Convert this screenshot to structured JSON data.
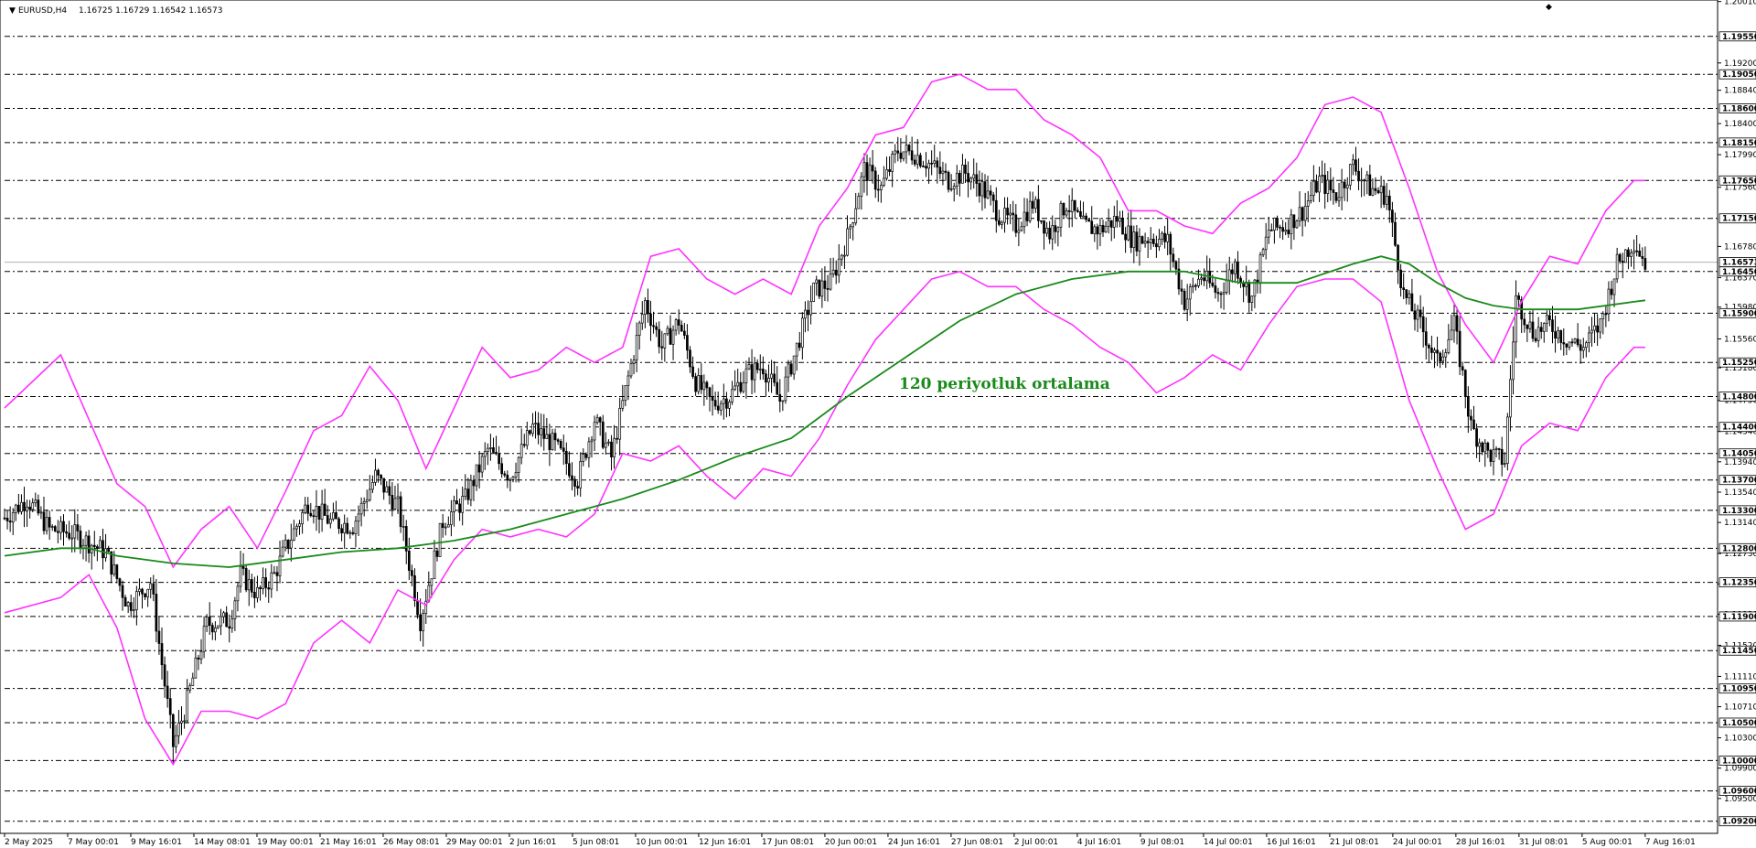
{
  "header": {
    "symbol": "EURUSD,H4",
    "ohlc": "1.16725 1.16729 1.16542 1.16573"
  },
  "annotation": "120 periyotluk ortalama",
  "colors": {
    "candle": "#000000",
    "bands": "#ff33ff",
    "ma": "#1a8a1a",
    "levels": "#000000",
    "bid_line": "#b0b0b0"
  },
  "chart_data": {
    "type": "candlestick",
    "symbol": "EURUSD",
    "timeframe": "H4",
    "ylim": [
      1.0904,
      1.2003
    ],
    "price_axis_ticks": [
      "1.20010",
      "1.19200",
      "1.18840",
      "1.18400",
      "1.17990",
      "1.17560",
      "1.16780",
      "1.16370",
      "1.15980",
      "1.15560",
      "1.15180",
      "1.14750",
      "1.14340",
      "1.13940",
      "1.13540",
      "1.13140",
      "1.12730",
      "1.12330",
      "1.11930",
      "1.11520",
      "1.11110",
      "1.10710",
      "1.10300",
      "1.09900",
      "1.09500"
    ],
    "levels": [
      "1.19550",
      "1.19050",
      "1.18600",
      "1.18150",
      "1.17650",
      "1.17150",
      "1.16450",
      "1.15900",
      "1.15250",
      "1.14800",
      "1.14400",
      "1.14050",
      "1.13700",
      "1.13300",
      "1.12800",
      "1.12350",
      "1.11900",
      "1.11450",
      "1.10950",
      "1.10500",
      "1.10000",
      "1.09600",
      "1.09200"
    ],
    "current_price": "1.16573",
    "x_labels": [
      "2 May 2025",
      "7 May 00:01",
      "9 May 16:01",
      "14 May 08:01",
      "19 May 00:01",
      "21 May 16:01",
      "26 May 08:01",
      "29 May 00:01",
      "2 Jun 16:01",
      "5 Jun 08:01",
      "10 Jun 00:01",
      "12 Jun 16:01",
      "17 Jun 08:01",
      "20 Jun 00:01",
      "24 Jun 16:01",
      "27 Jun 08:01",
      "2 Jul 00:01",
      "4 Jul 16:01",
      "9 Jul 08:01",
      "14 Jul 00:01",
      "16 Jul 16:01",
      "21 Jul 08:01",
      "24 Jul 00:01",
      "28 Jul 16:01",
      "31 Jul 08:01",
      "5 Aug 00:01",
      "7 Aug 16:01"
    ],
    "close_path": [
      [
        0,
        1.132
      ],
      [
        8,
        1.1345
      ],
      [
        16,
        1.1305
      ],
      [
        24,
        1.13
      ],
      [
        36,
        1.1275
      ],
      [
        44,
        1.1205
      ],
      [
        52,
        1.1235
      ],
      [
        60,
        1.102
      ],
      [
        64,
        1.1065
      ],
      [
        72,
        1.118
      ],
      [
        80,
        1.1185
      ],
      [
        84,
        1.1245
      ],
      [
        90,
        1.122
      ],
      [
        96,
        1.1245
      ],
      [
        100,
        1.128
      ],
      [
        108,
        1.134
      ],
      [
        116,
        1.1315
      ],
      [
        124,
        1.131
      ],
      [
        132,
        1.1375
      ],
      [
        140,
        1.1335
      ],
      [
        148,
        1.1185
      ],
      [
        156,
        1.1315
      ],
      [
        164,
        1.1345
      ],
      [
        172,
        1.141
      ],
      [
        180,
        1.1375
      ],
      [
        188,
        1.144
      ],
      [
        196,
        1.1415
      ],
      [
        204,
        1.137
      ],
      [
        210,
        1.145
      ],
      [
        216,
        1.14
      ],
      [
        222,
        1.1505
      ],
      [
        228,
        1.1605
      ],
      [
        234,
        1.1545
      ],
      [
        240,
        1.158
      ],
      [
        246,
        1.15
      ],
      [
        252,
        1.147
      ],
      [
        258,
        1.148
      ],
      [
        264,
        1.151
      ],
      [
        270,
        1.152
      ],
      [
        276,
        1.1475
      ],
      [
        282,
        1.1545
      ],
      [
        288,
        1.162
      ],
      [
        294,
        1.163
      ],
      [
        300,
        1.169
      ],
      [
        306,
        1.178
      ],
      [
        312,
        1.1755
      ],
      [
        318,
        1.1805
      ],
      [
        324,
        1.18
      ],
      [
        330,
        1.1785
      ],
      [
        336,
        1.1765
      ],
      [
        342,
        1.1775
      ],
      [
        348,
        1.1755
      ],
      [
        354,
        1.172
      ],
      [
        360,
        1.1705
      ],
      [
        366,
        1.1735
      ],
      [
        372,
        1.1695
      ],
      [
        378,
        1.1735
      ],
      [
        384,
        1.1705
      ],
      [
        390,
        1.17
      ],
      [
        396,
        1.1715
      ],
      [
        402,
        1.1685
      ],
      [
        408,
        1.169
      ],
      [
        414,
        1.1685
      ],
      [
        420,
        1.1605
      ],
      [
        426,
        1.164
      ],
      [
        432,
        1.1615
      ],
      [
        438,
        1.1655
      ],
      [
        444,
        1.161
      ],
      [
        450,
        1.17
      ],
      [
        456,
        1.1705
      ],
      [
        462,
        1.1725
      ],
      [
        468,
        1.1765
      ],
      [
        474,
        1.1745
      ],
      [
        480,
        1.1785
      ],
      [
        486,
        1.1755
      ],
      [
        492,
        1.1745
      ],
      [
        498,
        1.1615
      ],
      [
        504,
        1.1575
      ],
      [
        510,
        1.1525
      ],
      [
        516,
        1.1575
      ],
      [
        522,
        1.144
      ],
      [
        528,
        1.1405
      ],
      [
        534,
        1.1395
      ],
      [
        538,
        1.161
      ],
      [
        544,
        1.1565
      ],
      [
        550,
        1.1575
      ],
      [
        556,
        1.1555
      ],
      [
        562,
        1.1545
      ],
      [
        568,
        1.1575
      ],
      [
        574,
        1.1655
      ],
      [
        580,
        1.1685
      ],
      [
        584,
        1.1657
      ]
    ],
    "bands": {
      "upper_path": [
        [
          0,
          1.1465
        ],
        [
          20,
          1.1535
        ],
        [
          40,
          1.1365
        ],
        [
          50,
          1.1335
        ],
        [
          60,
          1.1255
        ],
        [
          70,
          1.1305
        ],
        [
          80,
          1.1335
        ],
        [
          90,
          1.128
        ],
        [
          100,
          1.1355
        ],
        [
          110,
          1.1435
        ],
        [
          120,
          1.1455
        ],
        [
          130,
          1.152
        ],
        [
          140,
          1.1475
        ],
        [
          150,
          1.1385
        ],
        [
          160,
          1.1465
        ],
        [
          170,
          1.1545
        ],
        [
          180,
          1.1505
        ],
        [
          190,
          1.1515
        ],
        [
          200,
          1.1545
        ],
        [
          210,
          1.1525
        ],
        [
          220,
          1.1545
        ],
        [
          230,
          1.1665
        ],
        [
          240,
          1.1675
        ],
        [
          250,
          1.1635
        ],
        [
          260,
          1.1615
        ],
        [
          270,
          1.1635
        ],
        [
          280,
          1.1615
        ],
        [
          290,
          1.1705
        ],
        [
          300,
          1.1755
        ],
        [
          310,
          1.1825
        ],
        [
          320,
          1.1835
        ],
        [
          330,
          1.1895
        ],
        [
          340,
          1.1905
        ],
        [
          350,
          1.1885
        ],
        [
          360,
          1.1885
        ],
        [
          370,
          1.1845
        ],
        [
          380,
          1.1825
        ],
        [
          390,
          1.1795
        ],
        [
          400,
          1.1725
        ],
        [
          410,
          1.1725
        ],
        [
          420,
          1.1705
        ],
        [
          430,
          1.1695
        ],
        [
          440,
          1.1735
        ],
        [
          450,
          1.1755
        ],
        [
          460,
          1.1795
        ],
        [
          470,
          1.1865
        ],
        [
          480,
          1.1875
        ],
        [
          490,
          1.1855
        ],
        [
          500,
          1.1755
        ],
        [
          510,
          1.1645
        ],
        [
          520,
          1.1575
        ],
        [
          530,
          1.1525
        ],
        [
          540,
          1.1605
        ],
        [
          550,
          1.1665
        ],
        [
          560,
          1.1655
        ],
        [
          570,
          1.1725
        ],
        [
          580,
          1.1765
        ],
        [
          584,
          1.1765
        ]
      ],
      "lower_path": [
        [
          0,
          1.1195
        ],
        [
          20,
          1.1215
        ],
        [
          30,
          1.1245
        ],
        [
          40,
          1.1175
        ],
        [
          50,
          1.1055
        ],
        [
          60,
          1.0995
        ],
        [
          70,
          1.1065
        ],
        [
          80,
          1.1065
        ],
        [
          90,
          1.1055
        ],
        [
          100,
          1.1075
        ],
        [
          110,
          1.1155
        ],
        [
          120,
          1.1185
        ],
        [
          130,
          1.1155
        ],
        [
          140,
          1.1225
        ],
        [
          150,
          1.1205
        ],
        [
          160,
          1.1265
        ],
        [
          170,
          1.1305
        ],
        [
          180,
          1.1295
        ],
        [
          190,
          1.1305
        ],
        [
          200,
          1.1295
        ],
        [
          210,
          1.1325
        ],
        [
          220,
          1.1405
        ],
        [
          230,
          1.1395
        ],
        [
          240,
          1.1415
        ],
        [
          250,
          1.1375
        ],
        [
          260,
          1.1345
        ],
        [
          270,
          1.1385
        ],
        [
          280,
          1.1375
        ],
        [
          290,
          1.1425
        ],
        [
          300,
          1.1495
        ],
        [
          310,
          1.1555
        ],
        [
          320,
          1.1595
        ],
        [
          330,
          1.1635
        ],
        [
          340,
          1.1645
        ],
        [
          350,
          1.1625
        ],
        [
          360,
          1.1625
        ],
        [
          370,
          1.1595
        ],
        [
          380,
          1.1575
        ],
        [
          390,
          1.1545
        ],
        [
          400,
          1.1525
        ],
        [
          410,
          1.1485
        ],
        [
          420,
          1.1505
        ],
        [
          430,
          1.1535
        ],
        [
          440,
          1.1515
        ],
        [
          450,
          1.1575
        ],
        [
          460,
          1.1625
        ],
        [
          470,
          1.1635
        ],
        [
          480,
          1.1635
        ],
        [
          490,
          1.1605
        ],
        [
          500,
          1.1475
        ],
        [
          510,
          1.1385
        ],
        [
          520,
          1.1305
        ],
        [
          530,
          1.1325
        ],
        [
          540,
          1.1415
        ],
        [
          550,
          1.1445
        ],
        [
          560,
          1.1435
        ],
        [
          570,
          1.1505
        ],
        [
          580,
          1.1545
        ],
        [
          584,
          1.1545
        ]
      ]
    },
    "ma_path": [
      [
        0,
        1.127
      ],
      [
        20,
        1.128
      ],
      [
        30,
        1.128
      ],
      [
        40,
        1.127
      ],
      [
        60,
        1.126
      ],
      [
        80,
        1.1255
      ],
      [
        100,
        1.1265
      ],
      [
        120,
        1.1275
      ],
      [
        140,
        1.128
      ],
      [
        160,
        1.129
      ],
      [
        180,
        1.1305
      ],
      [
        200,
        1.1325
      ],
      [
        220,
        1.1345
      ],
      [
        240,
        1.137
      ],
      [
        260,
        1.14
      ],
      [
        280,
        1.1425
      ],
      [
        300,
        1.148
      ],
      [
        320,
        1.153
      ],
      [
        340,
        1.158
      ],
      [
        360,
        1.1615
      ],
      [
        380,
        1.1635
      ],
      [
        400,
        1.1645
      ],
      [
        420,
        1.1645
      ],
      [
        440,
        1.163
      ],
      [
        460,
        1.163
      ],
      [
        480,
        1.1655
      ],
      [
        490,
        1.1665
      ],
      [
        500,
        1.1655
      ],
      [
        510,
        1.163
      ],
      [
        520,
        1.161
      ],
      [
        530,
        1.16
      ],
      [
        540,
        1.1595
      ],
      [
        560,
        1.1595
      ],
      [
        580,
        1.1605
      ],
      [
        584,
        1.1607
      ]
    ]
  }
}
